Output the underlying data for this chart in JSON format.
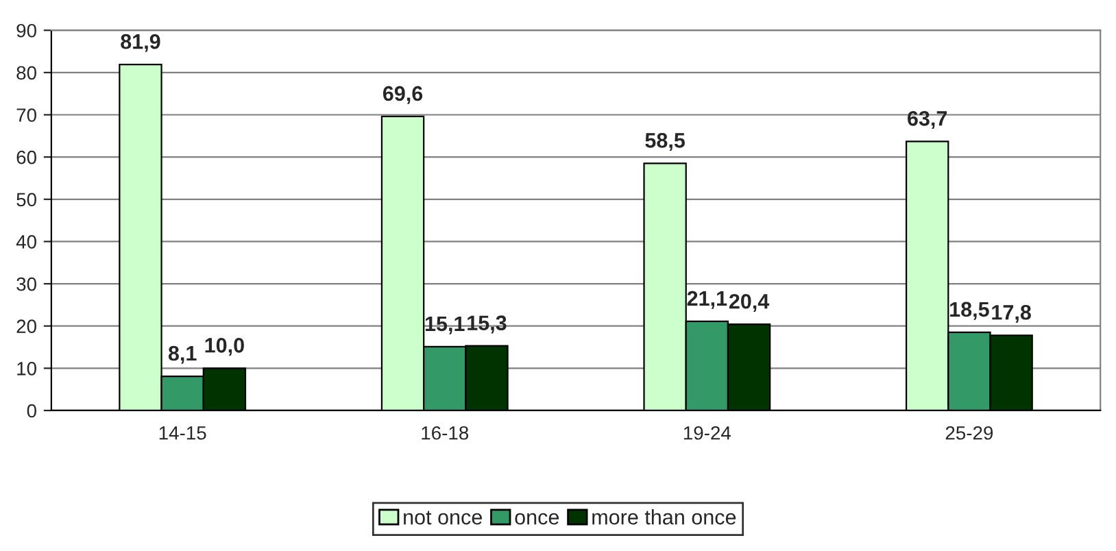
{
  "chart_data": {
    "type": "bar",
    "categories": [
      "14-15",
      "16-18",
      "19-24",
      "25-29"
    ],
    "series": [
      {
        "name": "not once",
        "color": "#ccffcc",
        "values": [
          81.9,
          69.6,
          58.5,
          63.7
        ],
        "value_labels": [
          "81,9",
          "69,6",
          "58,5",
          "63,7"
        ]
      },
      {
        "name": "once",
        "color": "#339966",
        "values": [
          8.1,
          15.1,
          21.1,
          18.5
        ],
        "value_labels": [
          "8,1",
          "15,1",
          "21,1",
          "18,5"
        ]
      },
      {
        "name": "more than once",
        "color": "#003300",
        "values": [
          10.0,
          15.3,
          20.4,
          17.8
        ],
        "value_labels": [
          "10,0",
          "15,3",
          "20,4",
          "17,8"
        ]
      }
    ],
    "ylim": [
      0,
      90
    ],
    "yticks": [
      0,
      10,
      20,
      30,
      40,
      50,
      60,
      70,
      80,
      90
    ],
    "grid": "y",
    "legend": "bottom"
  }
}
